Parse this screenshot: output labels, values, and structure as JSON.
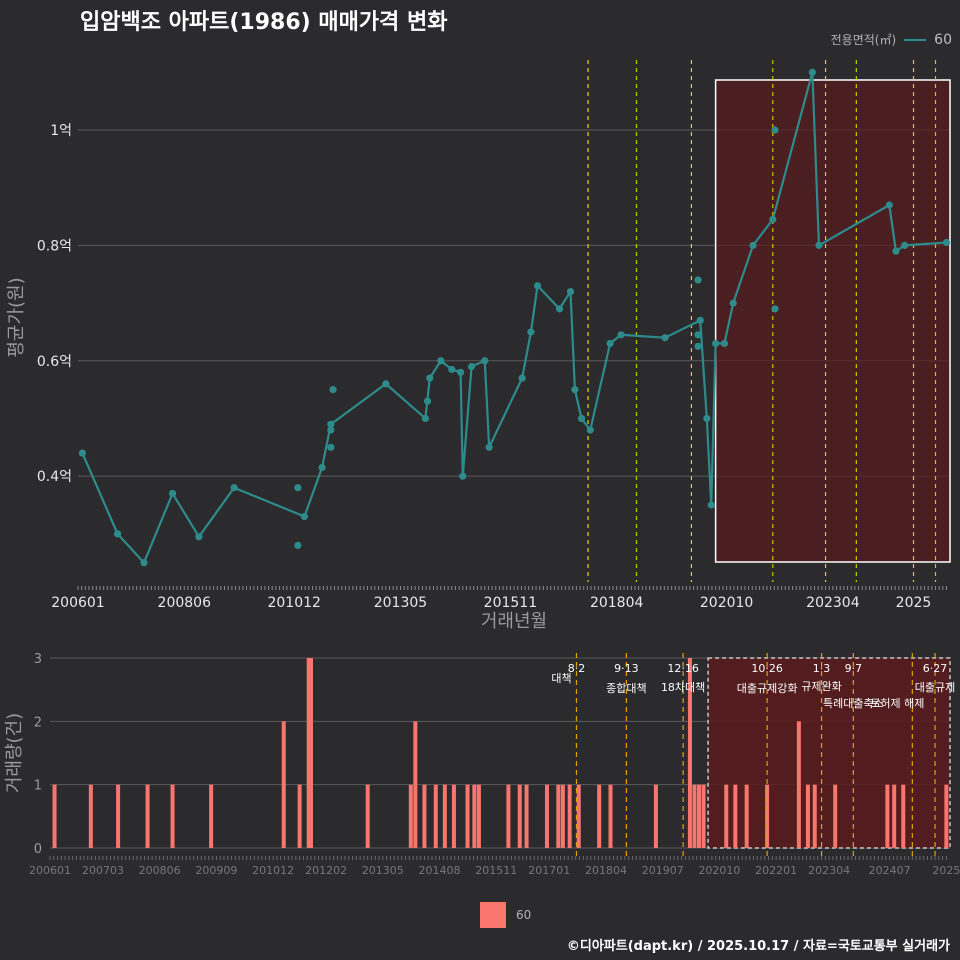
{
  "title": "입암백조 아파트(1986) 매매가격 변화",
  "legend_top": {
    "title": "전용면적(㎡)",
    "label": "60",
    "color": "#2e8b8b"
  },
  "legend_bottom": {
    "label": "60",
    "color": "#f8766d"
  },
  "credit": "©디아파트(dapt.kr) / 2025.10.17 / 자료=국토교통부 실거래가",
  "chart_data": [
    {
      "type": "line",
      "title": "입암백조 아파트(1986) 매매가격 변화",
      "xlabel": "거래년월",
      "ylabel": "평균가(원)",
      "xlim": [
        2006.0,
        2025.83
      ],
      "ylim": [
        0.22,
        1.13
      ],
      "x_ticks": [
        {
          "x": 2006.0,
          "label": "200601"
        },
        {
          "x": 2008.417,
          "label": "200806"
        },
        {
          "x": 2010.917,
          "label": "201012"
        },
        {
          "x": 2013.333,
          "label": "201305"
        },
        {
          "x": 2015.833,
          "label": "201511"
        },
        {
          "x": 2018.25,
          "label": "201804"
        },
        {
          "x": 2020.75,
          "label": "202010"
        },
        {
          "x": 2023.167,
          "label": "202304"
        },
        {
          "x": 2025.0,
          "label": "2025"
        }
      ],
      "y_ticks": [
        {
          "y": 0.4,
          "label": "0.4억"
        },
        {
          "y": 0.6,
          "label": "0.6억"
        },
        {
          "y": 0.8,
          "label": "0.8억"
        },
        {
          "y": 1.0,
          "label": "1억"
        }
      ],
      "series": [
        {
          "name": "60",
          "color": "#2e8b8b",
          "line": [
            [
              2006.1,
              0.44
            ],
            [
              2006.9,
              0.3
            ],
            [
              2007.5,
              0.25
            ],
            [
              2008.15,
              0.37
            ],
            [
              2008.75,
              0.295
            ],
            [
              2009.55,
              0.38
            ],
            [
              2011.15,
              0.33
            ],
            [
              2011.55,
              0.415
            ],
            [
              2011.75,
              0.49
            ],
            [
              2013.0,
              0.56
            ],
            [
              2013.9,
              0.5
            ],
            [
              2014.0,
              0.57
            ],
            [
              2014.25,
              0.6
            ],
            [
              2014.5,
              0.585
            ],
            [
              2014.7,
              0.58
            ],
            [
              2014.75,
              0.4
            ],
            [
              2014.95,
              0.59
            ],
            [
              2015.25,
              0.6
            ],
            [
              2015.35,
              0.45
            ],
            [
              2016.1,
              0.57
            ],
            [
              2016.3,
              0.65
            ],
            [
              2016.45,
              0.73
            ],
            [
              2016.95,
              0.69
            ],
            [
              2017.2,
              0.72
            ],
            [
              2017.3,
              0.55
            ],
            [
              2017.45,
              0.5
            ],
            [
              2017.65,
              0.48
            ],
            [
              2018.1,
              0.63
            ],
            [
              2018.35,
              0.645
            ],
            [
              2019.35,
              0.64
            ],
            [
              2020.15,
              0.67
            ],
            [
              2020.3,
              0.5
            ],
            [
              2020.4,
              0.35
            ],
            [
              2020.5,
              0.63
            ],
            [
              2020.7,
              0.63
            ],
            [
              2020.9,
              0.7
            ],
            [
              2021.35,
              0.8
            ],
            [
              2021.8,
              0.845
            ],
            [
              2022.7,
              1.1
            ],
            [
              2022.85,
              0.8
            ],
            [
              2024.45,
              0.87
            ],
            [
              2024.6,
              0.79
            ],
            [
              2024.8,
              0.8
            ],
            [
              2025.75,
              0.805
            ]
          ],
          "extra_points": [
            [
              2011.0,
              0.38
            ],
            [
              2011.0,
              0.28
            ],
            [
              2011.8,
              0.55
            ],
            [
              2011.75,
              0.48
            ],
            [
              2011.75,
              0.45
            ],
            [
              2013.95,
              0.53
            ],
            [
              2020.1,
              0.74
            ],
            [
              2020.1,
              0.645
            ],
            [
              2020.1,
              0.625
            ],
            [
              2021.85,
              1.0
            ],
            [
              2021.85,
              0.69
            ]
          ]
        }
      ],
      "policy_lines": [
        2017.6,
        2018.7,
        2019.95,
        2021.8,
        2023.0,
        2023.7,
        2025.0,
        2025.5
      ],
      "highlight_range": [
        2020.5,
        2025.83
      ]
    },
    {
      "type": "bar",
      "xlabel": "",
      "ylabel": "거래량(건)",
      "ylim": [
        0,
        3
      ],
      "y_ticks": [
        {
          "y": 0,
          "label": "0"
        },
        {
          "y": 1,
          "label": "1"
        },
        {
          "y": 2,
          "label": "2"
        },
        {
          "y": 3,
          "label": "3"
        }
      ],
      "x_ticks": [
        {
          "x": 2006.0,
          "label": "200601"
        },
        {
          "x": 2007.167,
          "label": "200703"
        },
        {
          "x": 2008.417,
          "label": "200806"
        },
        {
          "x": 2009.667,
          "label": "200909"
        },
        {
          "x": 2010.917,
          "label": "201012"
        },
        {
          "x": 2012.083,
          "label": "201202"
        },
        {
          "x": 2013.333,
          "label": "201305"
        },
        {
          "x": 2014.583,
          "label": "201408"
        },
        {
          "x": 2015.833,
          "label": "201511"
        },
        {
          "x": 2017.0,
          "label": "201701"
        },
        {
          "x": 2018.25,
          "label": "201804"
        },
        {
          "x": 2019.5,
          "label": "201907"
        },
        {
          "x": 2020.75,
          "label": "202010"
        },
        {
          "x": 2022.0,
          "label": "202201"
        },
        {
          "x": 2023.167,
          "label": "202304"
        },
        {
          "x": 2024.5,
          "label": "202407"
        },
        {
          "x": 2025.75,
          "label": "2025"
        }
      ],
      "series": [
        {
          "name": "60",
          "color": "#f8766d",
          "bars": [
            [
              2006.1,
              1
            ],
            [
              2006.9,
              1
            ],
            [
              2007.5,
              1
            ],
            [
              2008.15,
              1
            ],
            [
              2008.7,
              1
            ],
            [
              2009.55,
              1
            ],
            [
              2011.15,
              2
            ],
            [
              2011.5,
              1
            ],
            [
              2011.7,
              3
            ],
            [
              2011.75,
              3
            ],
            [
              2013.0,
              1
            ],
            [
              2013.95,
              1
            ],
            [
              2014.05,
              2
            ],
            [
              2014.25,
              1
            ],
            [
              2014.5,
              1
            ],
            [
              2014.7,
              1
            ],
            [
              2014.9,
              1
            ],
            [
              2015.2,
              1
            ],
            [
              2015.35,
              1
            ],
            [
              2015.45,
              1
            ],
            [
              2016.1,
              1
            ],
            [
              2016.35,
              1
            ],
            [
              2016.5,
              1
            ],
            [
              2016.95,
              1
            ],
            [
              2017.2,
              1
            ],
            [
              2017.3,
              1
            ],
            [
              2017.45,
              1
            ],
            [
              2017.65,
              1
            ],
            [
              2018.1,
              1
            ],
            [
              2018.35,
              1
            ],
            [
              2019.35,
              1
            ],
            [
              2020.1,
              3
            ],
            [
              2020.2,
              1
            ],
            [
              2020.3,
              1
            ],
            [
              2020.4,
              1
            ],
            [
              2020.9,
              1
            ],
            [
              2021.1,
              1
            ],
            [
              2021.35,
              1
            ],
            [
              2021.8,
              1
            ],
            [
              2022.5,
              2
            ],
            [
              2022.7,
              1
            ],
            [
              2022.85,
              1
            ],
            [
              2023.3,
              1
            ],
            [
              2024.45,
              1
            ],
            [
              2024.6,
              1
            ],
            [
              2024.8,
              1
            ],
            [
              2025.75,
              1
            ]
          ]
        }
      ],
      "policy_events": [
        {
          "x": 2017.6,
          "date": "8·2",
          "name": "대책"
        },
        {
          "x": 2018.7,
          "date": "9·13",
          "name": "종합대책"
        },
        {
          "x": 2019.95,
          "date": "12·16",
          "name": "18차대책"
        },
        {
          "x": 2021.8,
          "date": "10·26",
          "name": "대출규제강화"
        },
        {
          "x": 2023.0,
          "date": "1·3",
          "name": "규제완화"
        },
        {
          "x": 2023.7,
          "date": "9·7",
          "name": "특례대출축소"
        },
        {
          "x": 2025.0,
          "date": "",
          "name": "토허제 해제"
        },
        {
          "x": 2025.5,
          "date": "6·27",
          "name": "대출규제"
        }
      ],
      "highlight_range": [
        2020.5,
        2025.83
      ]
    }
  ]
}
